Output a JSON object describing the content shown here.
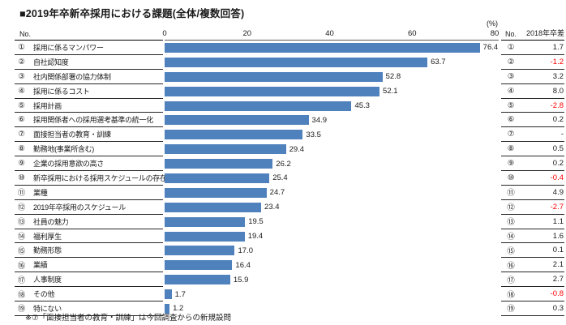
{
  "title": "■2019年卒新卒採用における課題(全体/複数回答)",
  "left_table": {
    "header": "No."
  },
  "right_table": {
    "header_no": "No.",
    "header_diff": "2018年卒差"
  },
  "axis": {
    "unit": "(%)",
    "ticks": [
      "0",
      "20",
      "40",
      "60",
      "80"
    ],
    "min": 0,
    "max": 80
  },
  "footnote": "※⑦「面接担当者の教育・訓練」は今回調査からの新規設問",
  "colors": {
    "bar": "#4F81BD",
    "negative": "#FF0000",
    "text": "#1a1a1a"
  },
  "chart_data": {
    "type": "bar",
    "orientation": "horizontal",
    "title": "2019年卒新卒採用における課題(全体/複数回答)",
    "xlabel": "(%)",
    "xlim": [
      0,
      80
    ],
    "grid": false,
    "legend": "none",
    "items": [
      {
        "no": "①",
        "label": "採用に係るマンパワー",
        "value": 76.4,
        "value_label": "76.4",
        "diff_2018": "1.7"
      },
      {
        "no": "②",
        "label": "自社認知度",
        "value": 63.7,
        "value_label": "63.7",
        "diff_2018": "-1.2"
      },
      {
        "no": "③",
        "label": "社内関係部署の協力体制",
        "value": 52.8,
        "value_label": "52.8",
        "diff_2018": "3.2"
      },
      {
        "no": "④",
        "label": "採用に係るコスト",
        "value": 52.1,
        "value_label": "52.1",
        "diff_2018": "8.0"
      },
      {
        "no": "⑤",
        "label": "採用計画",
        "value": 45.3,
        "value_label": "45.3",
        "diff_2018": "-2.8"
      },
      {
        "no": "⑥",
        "label": "採用関係者への採用選考基準の統一化",
        "value": 34.9,
        "value_label": "34.9",
        "diff_2018": "0.2"
      },
      {
        "no": "⑦",
        "label": "面接担当者の教育・訓練",
        "value": 33.5,
        "value_label": "33.5",
        "diff_2018": "-"
      },
      {
        "no": "⑧",
        "label": "勤務地(事業所含む)",
        "value": 29.4,
        "value_label": "29.4",
        "diff_2018": "0.5"
      },
      {
        "no": "⑨",
        "label": "企業の採用意欲の高さ",
        "value": 26.2,
        "value_label": "26.2",
        "diff_2018": "0.2"
      },
      {
        "no": "⑩",
        "label": "新卒採用における採用スケジュールの存在",
        "value": 25.4,
        "value_label": "25.4",
        "diff_2018": "-0.4"
      },
      {
        "no": "⑪",
        "label": "業種",
        "value": 24.7,
        "value_label": "24.7",
        "diff_2018": "4.9"
      },
      {
        "no": "⑫",
        "label": "2019年卒採用のスケジュール",
        "value": 23.4,
        "value_label": "23.4",
        "diff_2018": "-2.7"
      },
      {
        "no": "⑬",
        "label": "社員の魅力",
        "value": 19.5,
        "value_label": "19.5",
        "diff_2018": "1.1"
      },
      {
        "no": "⑭",
        "label": "福利厚生",
        "value": 19.4,
        "value_label": "19.4",
        "diff_2018": "1.6"
      },
      {
        "no": "⑮",
        "label": "勤務形態",
        "value": 17.0,
        "value_label": "17.0",
        "diff_2018": "0.1"
      },
      {
        "no": "⑯",
        "label": "業績",
        "value": 16.4,
        "value_label": "16.4",
        "diff_2018": "2.1"
      },
      {
        "no": "⑰",
        "label": "人事制度",
        "value": 15.9,
        "value_label": "15.9",
        "diff_2018": "2.7"
      },
      {
        "no": "⑱",
        "label": "その他",
        "value": 1.7,
        "value_label": "1.7",
        "diff_2018": "-0.8"
      },
      {
        "no": "⑲",
        "label": "特にない",
        "value": 1.2,
        "value_label": "1.2",
        "diff_2018": "0.3"
      }
    ]
  }
}
